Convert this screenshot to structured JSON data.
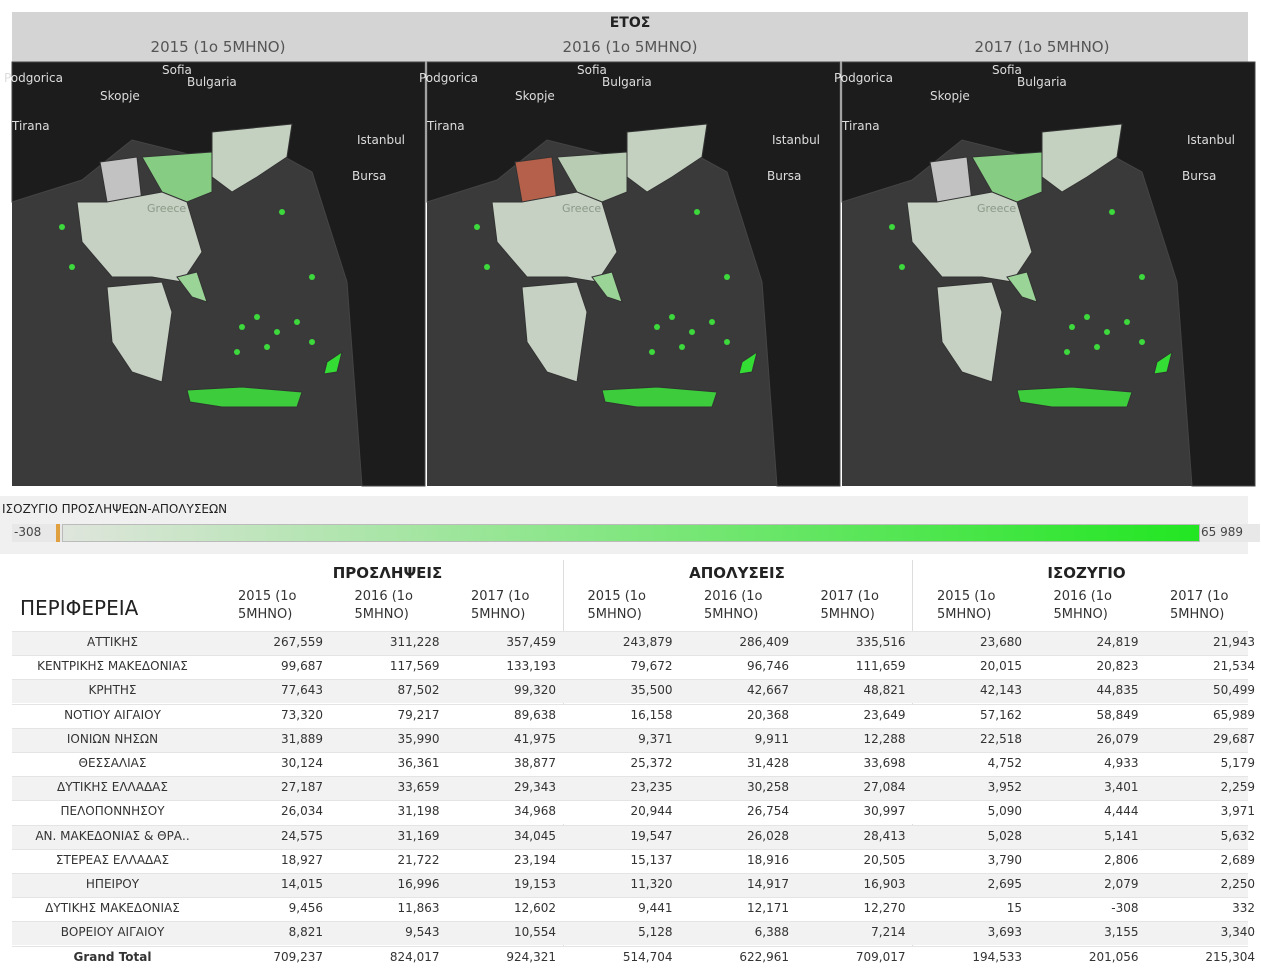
{
  "header": {
    "title": "ΕΤΟΣ",
    "years": [
      "2015 (1ο 5ΜΗΝΟ)",
      "2016 (1ο 5ΜΗΝΟ)",
      "2017 (1ο 5ΜΗΝΟ)"
    ]
  },
  "maps": {
    "labels": [
      "Podgorica",
      "Sofia",
      "Bulgaria",
      "Skopje",
      "Tirana",
      "Istanbul",
      "Bursa",
      "Greece"
    ]
  },
  "legend": {
    "title": "ΙΣΟΖΥΓΙΟ ΠΡΟΣΛΗΨΕΩΝ-ΑΠΟΛΥΣΕΩΝ",
    "min": "-308",
    "max": "65 989"
  },
  "table": {
    "row_header": "ΠΕΡΙΦΕΡΕΙΑ",
    "groups": [
      "ΠΡΟΣΛΗΨΕΙΣ",
      "ΑΠΟΛΥΣΕΙΣ",
      "ΙΣΟΖΥΓΙΟ"
    ],
    "rows": [
      [
        "ΑΤΤΙΚΗΣ",
        "267,559",
        "311,228",
        "357,459",
        "243,879",
        "286,409",
        "335,516",
        "23,680",
        "24,819",
        "21,943"
      ],
      [
        "ΚΕΝΤΡΙΚΗΣ ΜΑΚΕΔΟΝΙΑΣ",
        "99,687",
        "117,569",
        "133,193",
        "79,672",
        "96,746",
        "111,659",
        "20,015",
        "20,823",
        "21,534"
      ],
      [
        "ΚΡΗΤΗΣ",
        "77,643",
        "87,502",
        "99,320",
        "35,500",
        "42,667",
        "48,821",
        "42,143",
        "44,835",
        "50,499"
      ],
      [
        "ΝΟΤΙΟΥ ΑΙΓΑΙΟΥ",
        "73,320",
        "79,217",
        "89,638",
        "16,158",
        "20,368",
        "23,649",
        "57,162",
        "58,849",
        "65,989"
      ],
      [
        "ΙΟΝΙΩΝ ΝΗΣΩΝ",
        "31,889",
        "35,990",
        "41,975",
        "9,371",
        "9,911",
        "12,288",
        "22,518",
        "26,079",
        "29,687"
      ],
      [
        "ΘΕΣΣΑΛΙΑΣ",
        "30,124",
        "36,361",
        "38,877",
        "25,372",
        "31,428",
        "33,698",
        "4,752",
        "4,933",
        "5,179"
      ],
      [
        "ΔΥΤΙΚΗΣ ΕΛΛΑΔΑΣ",
        "27,187",
        "33,659",
        "29,343",
        "23,235",
        "30,258",
        "27,084",
        "3,952",
        "3,401",
        "2,259"
      ],
      [
        "ΠΕΛΟΠΟΝΝΗΣΟΥ",
        "26,034",
        "31,198",
        "34,968",
        "20,944",
        "26,754",
        "30,997",
        "5,090",
        "4,444",
        "3,971"
      ],
      [
        "ΑΝ. ΜΑΚΕΔΟΝΙΑΣ & ΘΡΑ..",
        "24,575",
        "31,169",
        "34,045",
        "19,547",
        "26,028",
        "28,413",
        "5,028",
        "5,141",
        "5,632"
      ],
      [
        "ΣΤΕΡΕΑΣ ΕΛΛΑΔΑΣ",
        "18,927",
        "21,722",
        "23,194",
        "15,137",
        "18,916",
        "20,505",
        "3,790",
        "2,806",
        "2,689"
      ],
      [
        "ΗΠΕΙΡΟΥ",
        "14,015",
        "16,996",
        "19,153",
        "11,320",
        "14,917",
        "16,903",
        "2,695",
        "2,079",
        "2,250"
      ],
      [
        "ΔΥΤΙΚΗΣ ΜΑΚΕΔΟΝΙΑΣ",
        "9,456",
        "11,863",
        "12,602",
        "9,441",
        "12,171",
        "12,270",
        "15",
        "-308",
        "332"
      ],
      [
        "ΒΟΡΕΙΟΥ ΑΙΓΑΙΟΥ",
        "8,821",
        "9,543",
        "10,554",
        "5,128",
        "6,388",
        "7,214",
        "3,693",
        "3,155",
        "3,340"
      ],
      [
        "Grand Total",
        "709,237",
        "824,017",
        "924,321",
        "514,704",
        "622,961",
        "709,017",
        "194,533",
        "201,056",
        "215,304"
      ]
    ]
  }
}
